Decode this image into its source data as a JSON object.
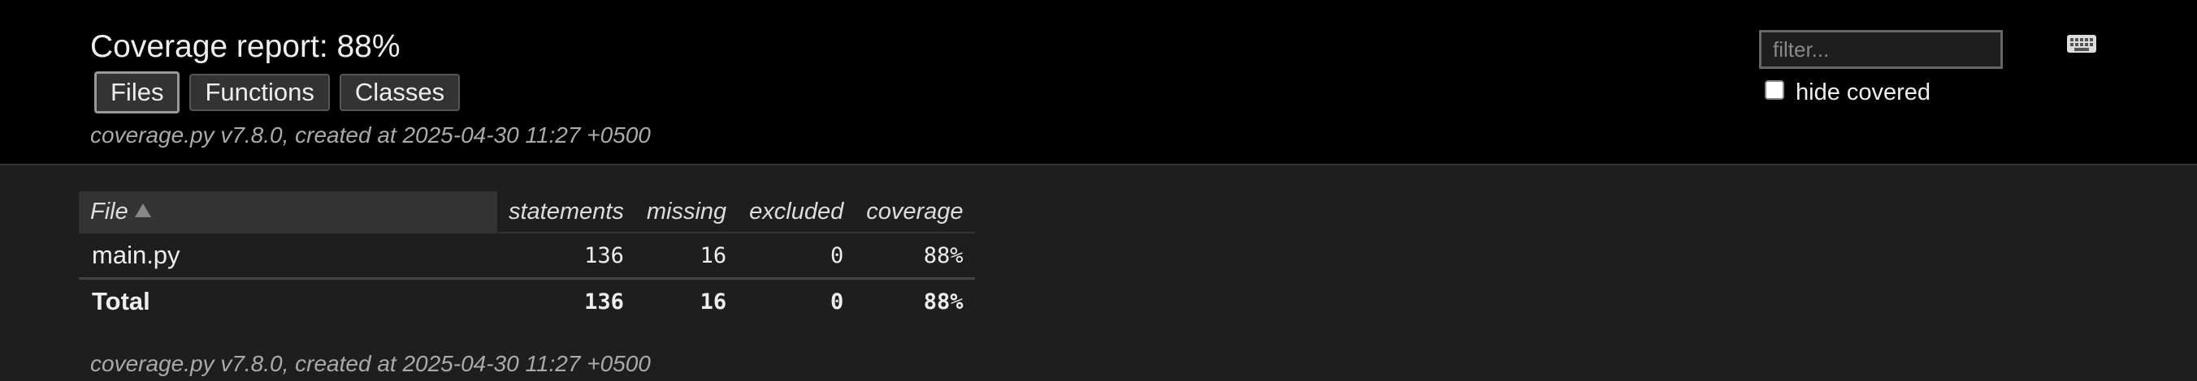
{
  "header": {
    "title": "Coverage report: 88%",
    "created": "coverage.py v7.8.0, created at 2025-04-30 11:27 +0500",
    "buttons": [
      {
        "label": "Files",
        "current": true
      },
      {
        "label": "Functions",
        "current": false
      },
      {
        "label": "Classes",
        "current": false
      }
    ],
    "filter_placeholder": "filter...",
    "hide_covered_label": "hide covered",
    "keyboard_icon": "keyboard-icon"
  },
  "table": {
    "columns": [
      "File",
      "statements",
      "missing",
      "excluded",
      "coverage"
    ],
    "rows": [
      {
        "file": "main.py",
        "statements": "136",
        "missing": "16",
        "excluded": "0",
        "coverage": "88%"
      }
    ],
    "total": {
      "label": "Total",
      "statements": "136",
      "missing": "16",
      "excluded": "0",
      "coverage": "88%"
    }
  },
  "footer": {
    "created": "coverage.py v7.8.0, created at 2025-04-30 11:27 +0500"
  },
  "colors": {
    "header_bg": "#000000",
    "body_bg": "#1e1e1e",
    "text": "#eeeeee",
    "muted_text": "#aaaaaa"
  }
}
